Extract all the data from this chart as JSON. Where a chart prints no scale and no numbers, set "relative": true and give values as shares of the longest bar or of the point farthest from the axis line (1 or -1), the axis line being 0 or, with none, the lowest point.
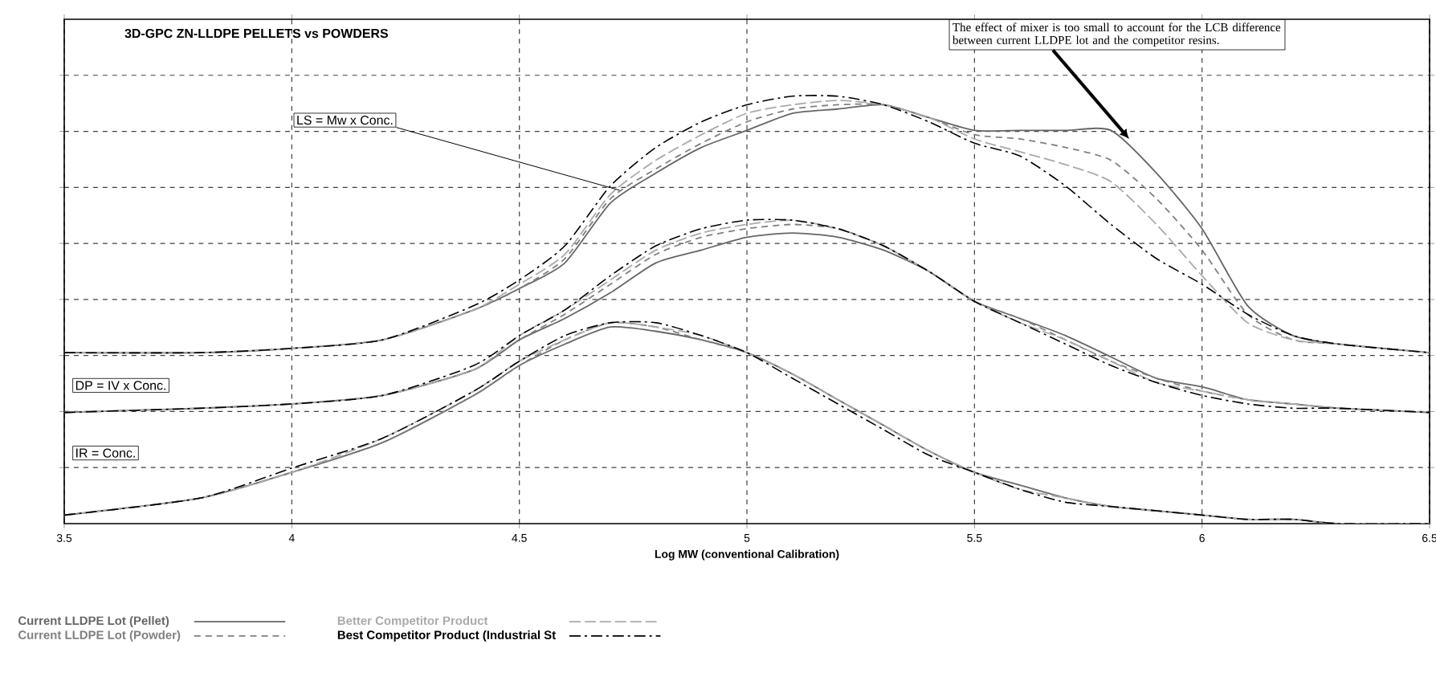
{
  "chart_data": {
    "type": "line",
    "title": "3D-GPC ZN-LLDPE PELLETS vs POWDERS",
    "xlabel": "Log MW (conventional Calibration)",
    "relative": true,
    "xlim": [
      3.5,
      6.5
    ],
    "xticks": [
      3.5,
      4,
      4.5,
      5,
      5.5,
      6,
      6.5
    ],
    "grid": true,
    "legend": "bottom",
    "marker": "none",
    "x": [
      3.5,
      3.8,
      4.0,
      4.2,
      4.4,
      4.5,
      4.6,
      4.7,
      4.8,
      4.9,
      5.0,
      5.1,
      5.2,
      5.3,
      5.4,
      5.5,
      5.6,
      5.7,
      5.8,
      5.9,
      6.0,
      6.1,
      6.2,
      6.3,
      6.5
    ],
    "series": [
      {
        "name": "Current LLDPE Lot (Pellet)",
        "color": "#666666",
        "line_style": "solid",
        "values": [
          0.4,
          0.4,
          0.41,
          0.43,
          0.5,
          0.55,
          0.61,
          0.75,
          0.82,
          0.88,
          0.92,
          0.96,
          0.97,
          0.98,
          0.95,
          0.92,
          0.92,
          0.92,
          0.92,
          0.82,
          0.69,
          0.51,
          0.44,
          0.42,
          0.4
        ]
      },
      {
        "name": "Current LLDPE Lot (Powder)",
        "color": "#808080",
        "line_style": "dashed",
        "values": [
          0.4,
          0.4,
          0.41,
          0.43,
          0.5,
          0.55,
          0.62,
          0.76,
          0.83,
          0.89,
          0.94,
          0.97,
          0.98,
          0.98,
          0.95,
          0.91,
          0.9,
          0.88,
          0.85,
          0.76,
          0.64,
          0.49,
          0.43,
          0.42,
          0.4
        ]
      },
      {
        "name": "Better Competitor Product",
        "color": "#aaaaaa",
        "line_style": "longdashed",
        "values": [
          0.4,
          0.4,
          0.41,
          0.43,
          0.5,
          0.56,
          0.63,
          0.77,
          0.85,
          0.91,
          0.96,
          0.98,
          0.99,
          0.98,
          0.95,
          0.9,
          0.87,
          0.84,
          0.8,
          0.7,
          0.58,
          0.47,
          0.43,
          0.42,
          0.4
        ]
      },
      {
        "name": "Best Competitor Product (Industrial St",
        "color": "#000000",
        "line_style": "dashdot",
        "values": [
          0.4,
          0.4,
          0.41,
          0.43,
          0.51,
          0.57,
          0.65,
          0.79,
          0.88,
          0.94,
          0.98,
          1.0,
          1.0,
          0.98,
          0.94,
          0.89,
          0.86,
          0.79,
          0.7,
          0.62,
          0.56,
          0.49,
          0.44,
          0.42,
          0.4
        ]
      },
      {
        "color": "#666666",
        "line_style": "solid",
        "values": [
          0.26,
          0.27,
          0.28,
          0.3,
          0.36,
          0.43,
          0.48,
          0.54,
          0.61,
          0.64,
          0.67,
          0.68,
          0.67,
          0.64,
          0.59,
          0.52,
          0.48,
          0.44,
          0.39,
          0.34,
          0.32,
          0.29,
          0.28,
          0.27,
          0.26
        ]
      },
      {
        "color": "#808080",
        "line_style": "dashed",
        "values": [
          0.26,
          0.27,
          0.28,
          0.3,
          0.36,
          0.43,
          0.49,
          0.56,
          0.63,
          0.67,
          0.69,
          0.7,
          0.69,
          0.65,
          0.59,
          0.52,
          0.48,
          0.43,
          0.38,
          0.34,
          0.31,
          0.29,
          0.28,
          0.27,
          0.26
        ]
      },
      {
        "color": "#aaaaaa",
        "line_style": "longdashed",
        "values": [
          0.26,
          0.27,
          0.28,
          0.3,
          0.36,
          0.44,
          0.5,
          0.57,
          0.64,
          0.68,
          0.7,
          0.71,
          0.69,
          0.65,
          0.59,
          0.52,
          0.47,
          0.43,
          0.38,
          0.33,
          0.31,
          0.29,
          0.28,
          0.27,
          0.26
        ]
      },
      {
        "color": "#000000",
        "line_style": "dashdot",
        "values": [
          0.26,
          0.27,
          0.28,
          0.3,
          0.37,
          0.44,
          0.5,
          0.58,
          0.65,
          0.69,
          0.71,
          0.71,
          0.69,
          0.65,
          0.59,
          0.52,
          0.47,
          0.42,
          0.37,
          0.33,
          0.3,
          0.28,
          0.27,
          0.27,
          0.26
        ]
      },
      {
        "color": "#666666",
        "line_style": "solid",
        "values": [
          0.02,
          0.06,
          0.12,
          0.19,
          0.3,
          0.37,
          0.42,
          0.46,
          0.45,
          0.43,
          0.4,
          0.35,
          0.29,
          0.23,
          0.17,
          0.12,
          0.09,
          0.06,
          0.04,
          0.03,
          0.02,
          0.01,
          0.01,
          0.0,
          0.0
        ]
      },
      {
        "color": "#808080",
        "line_style": "dashed",
        "values": [
          0.02,
          0.06,
          0.12,
          0.19,
          0.3,
          0.37,
          0.43,
          0.47,
          0.46,
          0.43,
          0.4,
          0.35,
          0.29,
          0.23,
          0.17,
          0.12,
          0.09,
          0.06,
          0.04,
          0.03,
          0.02,
          0.01,
          0.01,
          0.0,
          0.0
        ]
      },
      {
        "color": "#aaaaaa",
        "line_style": "longdashed",
        "values": [
          0.02,
          0.06,
          0.12,
          0.2,
          0.31,
          0.38,
          0.43,
          0.47,
          0.46,
          0.44,
          0.4,
          0.35,
          0.29,
          0.23,
          0.17,
          0.12,
          0.08,
          0.06,
          0.04,
          0.03,
          0.02,
          0.01,
          0.01,
          0.0,
          0.0
        ]
      },
      {
        "color": "#000000",
        "line_style": "dashdot",
        "values": [
          0.02,
          0.06,
          0.13,
          0.2,
          0.31,
          0.38,
          0.44,
          0.47,
          0.47,
          0.44,
          0.4,
          0.34,
          0.28,
          0.22,
          0.16,
          0.12,
          0.08,
          0.05,
          0.04,
          0.03,
          0.02,
          0.01,
          0.01,
          0.0,
          0.0
        ]
      }
    ],
    "annotations": [
      {
        "text": "LS = Mw x Conc.",
        "x": 4.72,
        "y": 0.78
      },
      "DP = IV x Conc.",
      "IR = Conc.",
      {
        "text": "The effect of mixer is too small to account for the LCB difference between current LLDPE lot and the competitor resins.",
        "x": 5.84,
        "y": 0.9
      }
    ]
  }
}
